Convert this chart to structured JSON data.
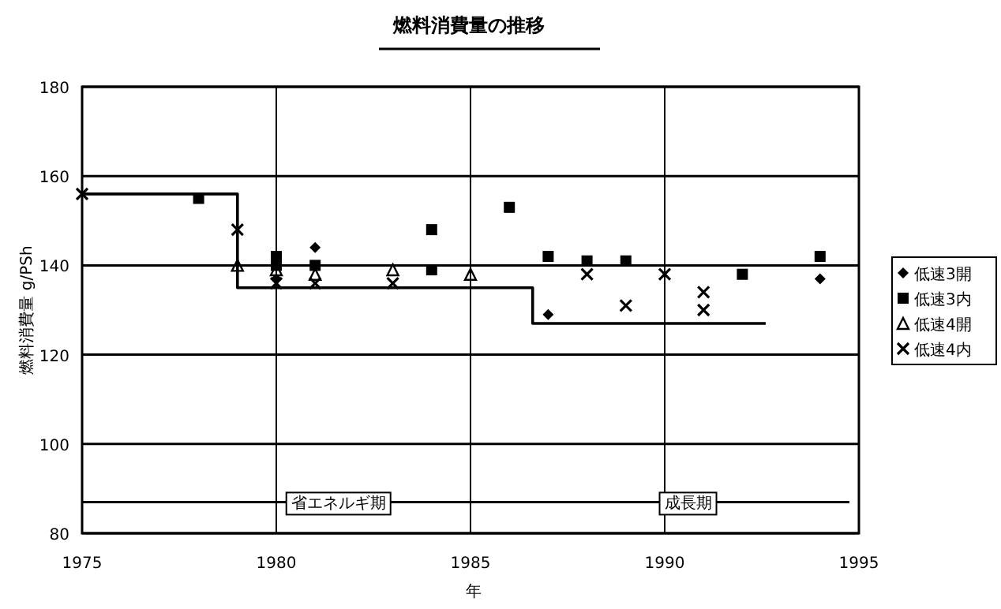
{
  "chart_data": {
    "type": "scatter",
    "title": "燃料消費量の推移",
    "xlabel": "年",
    "ylabel": "燃料消費量 g/PSh",
    "xlim": [
      1975,
      1995
    ],
    "xticks": [
      1975,
      1980,
      1985,
      1990,
      1995
    ],
    "ylim": [
      80,
      180
    ],
    "yticks": [
      80,
      100,
      120,
      140,
      160,
      180
    ],
    "grid": true,
    "legend": "right",
    "series": [
      {
        "name": "低速3開",
        "color": "#000000",
        "marker": "diamond",
        "x": [
          1980,
          1981,
          1987,
          1994
        ],
        "values": [
          137,
          144,
          129,
          137
        ]
      },
      {
        "name": "低速3内",
        "color": "#000000",
        "marker": "square",
        "x": [
          1978,
          1980,
          1980,
          1981,
          1984,
          1984,
          1986,
          1987,
          1988,
          1989,
          1992,
          1994
        ],
        "values": [
          155,
          142,
          140,
          140,
          148,
          139,
          153,
          142,
          141,
          141,
          138,
          142
        ]
      },
      {
        "name": "低速4開",
        "color": "#000000",
        "marker": "triangle",
        "x": [
          1979,
          1980,
          1981,
          1983,
          1985
        ],
        "values": [
          140,
          139,
          138,
          139,
          138
        ]
      },
      {
        "name": "低速4内",
        "color": "#000000",
        "marker": "cross",
        "x": [
          1975,
          1979,
          1980,
          1981,
          1983,
          1988,
          1989,
          1990,
          1991,
          1991
        ],
        "values": [
          156,
          148,
          136,
          136,
          136,
          138,
          131,
          138,
          134,
          130
        ]
      },
      {
        "type": "line",
        "color": "#000000",
        "marker": "none",
        "x": [
          1975,
          1979,
          1979,
          1986.6,
          1986.6,
          1992.6
        ],
        "values": [
          156,
          156,
          135,
          135,
          127,
          127
        ]
      }
    ],
    "ref_lines": [
      {
        "axis": "y",
        "value": 87,
        "color": "#000000"
      }
    ],
    "annotations": [
      {
        "text": "省エネルギ期",
        "x": 1981.6,
        "y": 87
      },
      {
        "text": "成長期",
        "x": 1990.6,
        "y": 87
      }
    ]
  }
}
